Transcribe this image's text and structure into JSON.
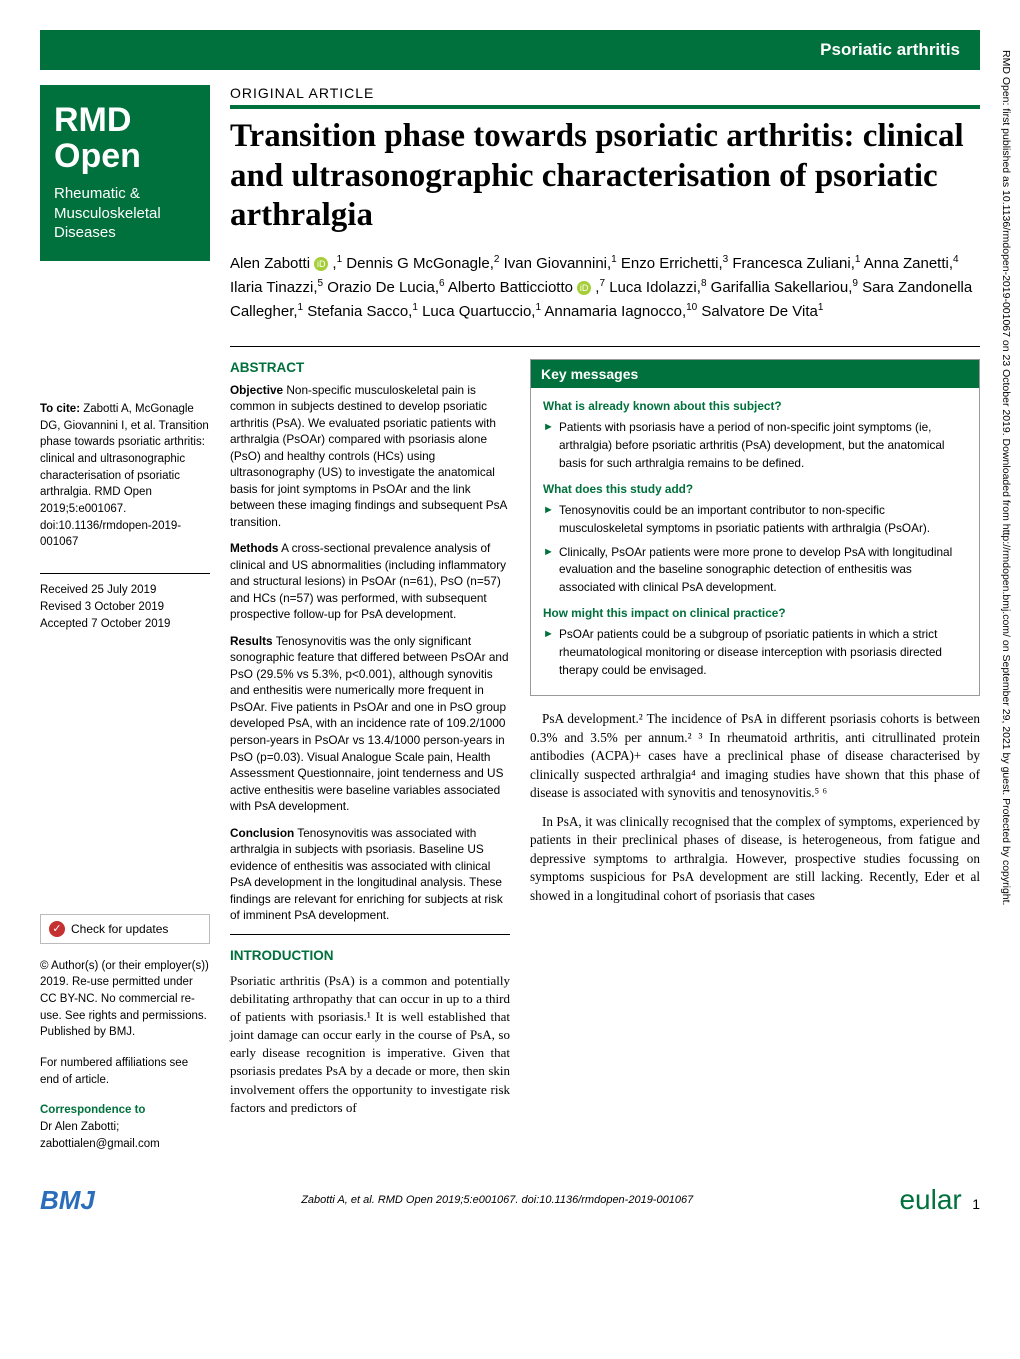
{
  "header": {
    "category": "Psoriatic arthritis"
  },
  "logo": {
    "title": "RMD Open",
    "subtitle": "Rheumatic & Musculoskeletal Diseases"
  },
  "article": {
    "type": "ORIGINAL ARTICLE",
    "title": "Transition phase towards psoriatic arthritis: clinical and ultrasonographic characterisation of psoriatic arthralgia",
    "authors_html": "Alen Zabotti <span class='orcid'>iD</span> ,<sup>1</sup> Dennis G McGonagle,<sup>2</sup> Ivan Giovannini,<sup>1</sup> Enzo Errichetti,<sup>3</sup> Francesca Zuliani,<sup>1</sup> Anna Zanetti,<sup>4</sup> Ilaria Tinazzi,<sup>5</sup> Orazio De Lucia,<sup>6</sup> Alberto Batticciotto <span class='orcid'>iD</span> ,<sup>7</sup> Luca Idolazzi,<sup>8</sup> Garifallia Sakellariou,<sup>9</sup> Sara Zandonella Callegher,<sup>1</sup> Stefania Sacco,<sup>1</sup> Luca Quartuccio,<sup>1</sup> Annamaria Iagnocco,<sup>10</sup> Salvatore De Vita<sup>1</sup>"
  },
  "cite": {
    "bold": "To cite:",
    "text": " Zabotti A, McGonagle DG, Giovannini I, et al. Transition phase towards psoriatic arthritis: clinical and ultrasonographic characterisation of psoriatic arthralgia. RMD Open 2019;5:e001067. doi:10.1136/rmdopen-2019-001067"
  },
  "dates": {
    "received": "Received 25 July 2019",
    "revised": "Revised 3 October 2019",
    "accepted": "Accepted 7 October 2019"
  },
  "check_updates": "Check for updates",
  "copyright": "© Author(s) (or their employer(s)) 2019. Re-use permitted under CC BY-NC. No commercial re-use. See rights and permissions. Published by BMJ.",
  "affil_note": "For numbered affiliations see end of article.",
  "correspondence": {
    "label": "Correspondence to",
    "name": "Dr Alen Zabotti;",
    "email": "zabottialen@gmail.com"
  },
  "abstract": {
    "head": "ABSTRACT",
    "objective_label": "Objective",
    "objective": "  Non-specific musculoskeletal pain is common in subjects destined to develop psoriatic arthritis (PsA). We evaluated psoriatic patients with arthralgia (PsOAr) compared with psoriasis alone (PsO) and healthy controls (HCs) using ultrasonography (US) to investigate the anatomical basis for joint symptoms in PsOAr and the link between these imaging findings and subsequent PsA transition.",
    "methods_label": "Methods",
    "methods": "  A cross-sectional prevalence analysis of clinical and US abnormalities (including inflammatory and structural lesions) in PsOAr (n=61), PsO (n=57) and HCs (n=57) was performed, with subsequent prospective follow-up for PsA development.",
    "results_label": "Results",
    "results": "  Tenosynovitis was the only significant sonographic feature that differed between PsOAr and PsO (29.5% vs 5.3%, p<0.001), although synovitis and enthesitis were numerically more frequent in PsOAr. Five patients in PsOAr and one in PsO group developed PsA, with an incidence rate of 109.2/1000 person-years in PsOAr vs 13.4/1000 person-years in PsO (p=0.03). Visual Analogue Scale pain, Health Assessment Questionnaire, joint tenderness and US active enthesitis were baseline variables associated with PsA development.",
    "conclusion_label": "Conclusion",
    "conclusion": "  Tenosynovitis was associated with arthralgia in subjects with psoriasis. Baseline US evidence of enthesitis was associated with clinical PsA development in the longitudinal analysis. These findings are relevant for enriching for subjects at risk of imminent PsA development."
  },
  "intro": {
    "head": "INTRODUCTION",
    "p1": "Psoriatic arthritis (PsA) is a common and potentially debilitating arthropathy that can occur in up to a third of patients with psoriasis.¹ It is well established that joint damage can occur early in the course of PsA, so early disease recognition is imperative. Given that psoriasis predates PsA by a decade or more, then skin involvement offers the opportunity to investigate risk factors and predictors of"
  },
  "keybox": {
    "head": "Key messages",
    "q1": "What is already known about this subject?",
    "a1": "Patients with psoriasis have a period of non-specific joint symptoms (ie, arthralgia) before psoriatic arthritis (PsA) development, but the anatomical basis for such arthralgia remains to be defined.",
    "q2": "What does this study add?",
    "a2_1": "Tenosynovitis could be an important contributor to non-specific musculoskeletal symptoms in psoriatic patients with arthralgia (PsOAr).",
    "a2_2": "Clinically, PsOAr patients were more prone to develop PsA with longitudinal evaluation and the baseline sonographic detection of enthesitis was associated with clinical PsA development.",
    "q3": "How might this impact on clinical practice?",
    "a3": "PsOAr patients could be a subgroup of psoriatic patients in which a strict rheumatological monitoring or disease interception with psoriasis directed therapy could be envisaged."
  },
  "body": {
    "p1": "PsA development.² The incidence of PsA in different psoriasis cohorts is between 0.3% and 3.5% per annum.² ³ In rheumatoid arthritis, anti citrullinated protein antibodies (ACPA)+ cases have a preclinical phase of disease characterised by clinically suspected arthralgia⁴ and imaging studies have shown that this phase of disease is associated with synovitis and tenosynovitis.⁵ ⁶",
    "p2": "In PsA, it was clinically recognised that the complex of symptoms, experienced by patients in their preclinical phases of disease, is heterogeneous, from fatigue and depressive symptoms to arthralgia. However, prospective studies focussing on symptoms suspicious for PsA development are still lacking. Recently, Eder et al showed in a longitudinal cohort of psoriasis that cases"
  },
  "footer": {
    "bmj": "BMJ",
    "citation": "Zabotti A, et al. RMD Open 2019;5:e001067. doi:10.1136/rmdopen-2019-001067",
    "eular": "eular",
    "pagenum": "1"
  },
  "side_note": "RMD Open: first published as 10.1136/rmdopen-2019-001067 on 23 October 2019. Downloaded from http://rmdopen.bmj.com/ on September 29, 2021 by guest. Protected by copyright."
}
